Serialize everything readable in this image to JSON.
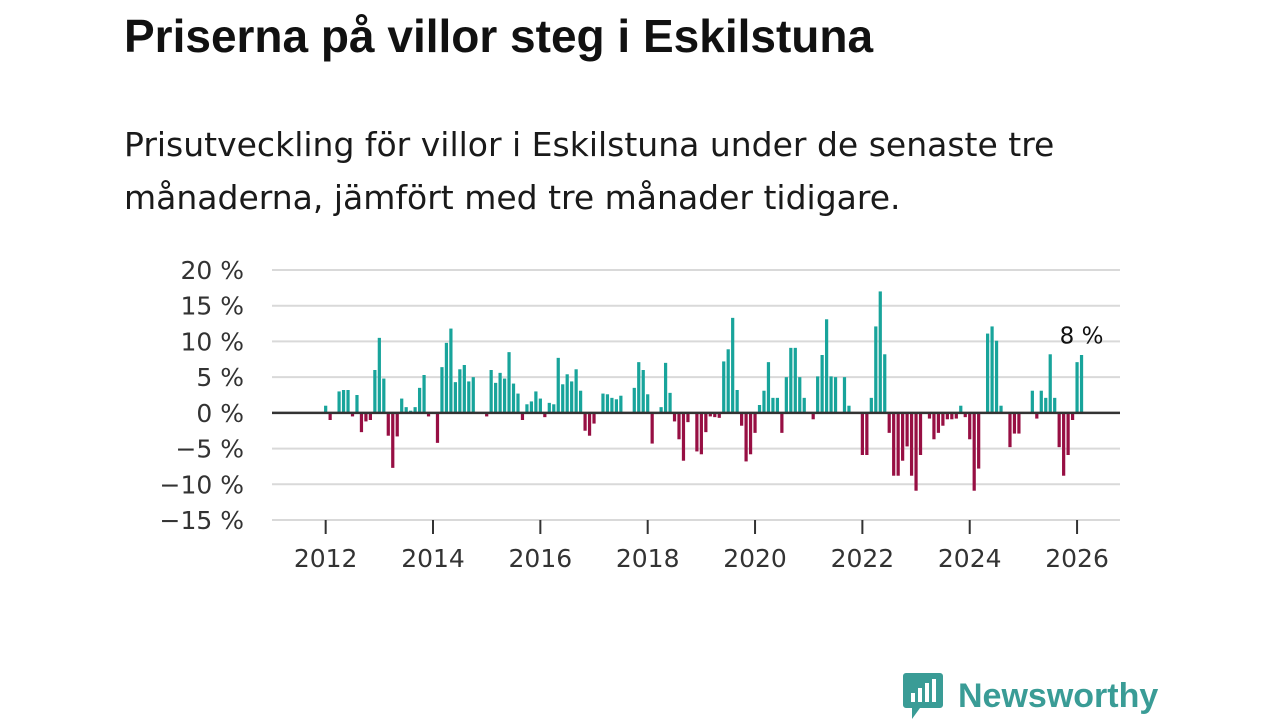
{
  "title": "Priserna på villor steg i Eskilstuna",
  "subtitle": "Prisutveckling för villor i Eskilstuna under de senaste tre månaderna, jämfört med tre månader tidigare.",
  "brand": {
    "name": "Newsworthy",
    "color": "#3a9c96"
  },
  "colors": {
    "positive": "#18a49b",
    "negative": "#970f43",
    "grid": "#d9d9d9",
    "zero_line": "#333333"
  },
  "chart_data": {
    "type": "bar",
    "title": "Priserna på villor steg i Eskilstuna",
    "xlabel": "",
    "ylabel": "",
    "ylim": [
      -15,
      20
    ],
    "xlim": [
      2011.0,
      2026.8
    ],
    "y_ticks": [
      20,
      15,
      10,
      5,
      0,
      -5,
      -10,
      -15
    ],
    "y_tick_labels": [
      "20 %",
      "15 %",
      "10 %",
      "5 %",
      "0 %",
      "−5 %",
      "−10 %",
      "−15 %"
    ],
    "x_ticks": [
      2012,
      2014,
      2016,
      2018,
      2020,
      2022,
      2024,
      2026
    ],
    "x_tick_labels": [
      "2012",
      "2014",
      "2016",
      "2018",
      "2020",
      "2022",
      "2024",
      "2026"
    ],
    "start": {
      "year": 2012,
      "month": 1
    },
    "frequency": "monthly",
    "annotation": {
      "text": "8 %",
      "value": 8
    },
    "values": [
      1,
      -1,
      0,
      3,
      3.2,
      3.2,
      -0.5,
      2.5,
      -2.7,
      -1.2,
      -1,
      6,
      10.5,
      4.8,
      -3.2,
      -7.7,
      -3.3,
      2,
      0.8,
      0.3,
      0.8,
      3.5,
      5.3,
      -0.5,
      0,
      -4.2,
      6.4,
      9.8,
      11.8,
      4.3,
      6.1,
      6.7,
      4.4,
      5,
      0,
      0,
      -0.5,
      6,
      4.2,
      5.6,
      4.8,
      8.5,
      4.1,
      2.7,
      -1,
      1.2,
      1.6,
      3,
      2,
      -0.6,
      1.4,
      1.2,
      7.7,
      4,
      5.4,
      4.4,
      6.1,
      3.1,
      -2.5,
      -3.2,
      -1.5,
      0,
      2.7,
      2.6,
      2.1,
      1.9,
      2.4,
      0,
      0,
      3.5,
      7.1,
      6,
      2.6,
      -4.3,
      0,
      0.8,
      7,
      2.8,
      -1.2,
      -3.7,
      -6.7,
      -1.3,
      0,
      -5.4,
      -5.8,
      -2.7,
      -0.5,
      -0.6,
      -0.7,
      7.2,
      8.9,
      13.3,
      3.2,
      -1.8,
      -6.8,
      -5.8,
      -2.8,
      1.1,
      3.1,
      7.1,
      2.1,
      2.1,
      -2.8,
      5,
      9.1,
      9.1,
      5,
      2.1,
      0,
      -0.9,
      5.1,
      8.1,
      13.1,
      5.1,
      5,
      0,
      5,
      1,
      0,
      0,
      -5.9,
      -5.9,
      2.1,
      12.1,
      17,
      8.2,
      -2.8,
      -8.8,
      -8.8,
      -6.7,
      -4.7,
      -8.8,
      -10.9,
      -5.9,
      0,
      -0.8,
      -3.7,
      -2.8,
      -1.8,
      -0.9,
      -0.9,
      -0.8,
      1,
      -0.6,
      -3.7,
      -10.9,
      -7.8,
      0,
      11.1,
      12.1,
      10.1,
      1,
      0,
      -4.8,
      -2.9,
      -2.9,
      0,
      0,
      3.1,
      -0.8,
      3.1,
      2.1,
      8.2,
      2.1,
      -4.8,
      -8.8,
      -5.9,
      -1,
      7.1,
      8.1
    ]
  }
}
